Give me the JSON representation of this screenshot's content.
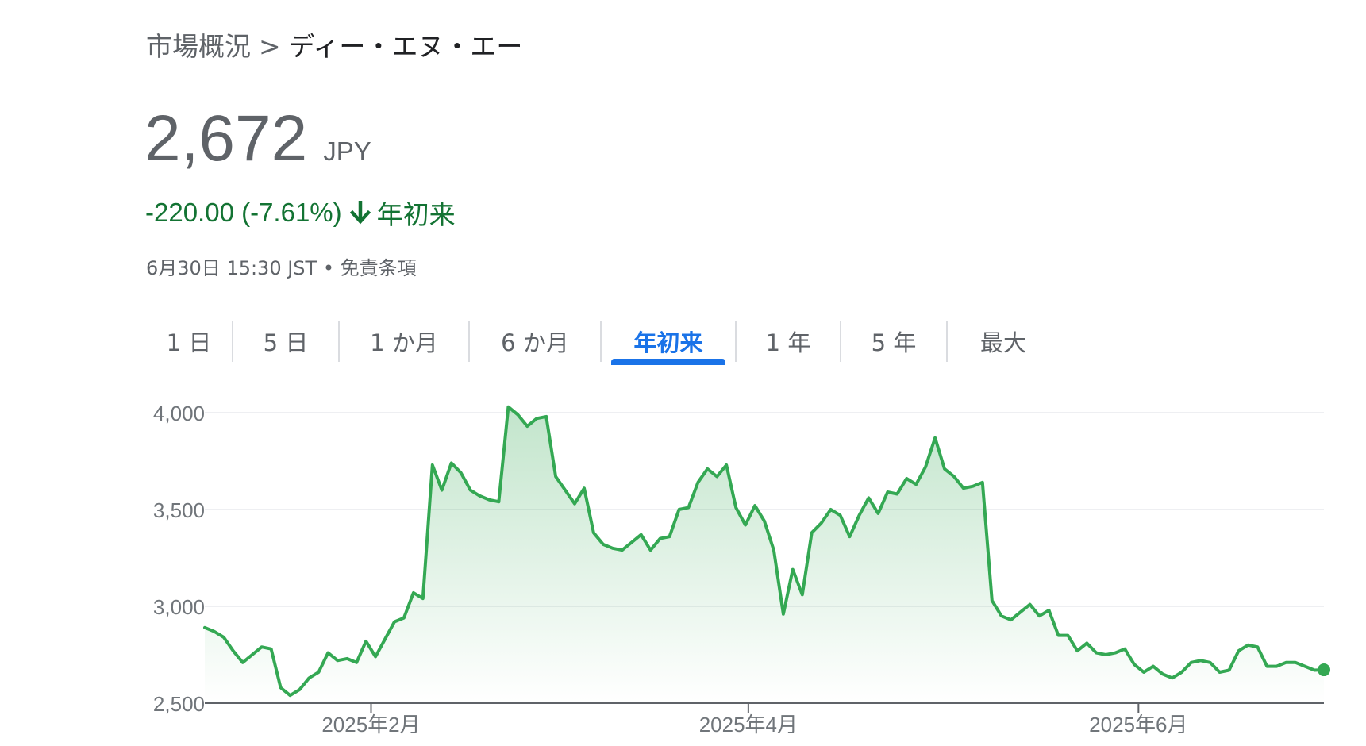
{
  "breadcrumb": {
    "root": "市場概況",
    "separator": ">",
    "current": "ディー・エヌ・エー"
  },
  "quote": {
    "price": "2,672",
    "currency": "JPY",
    "change": "-220.00 (-7.61%)",
    "period": "年初来",
    "timestamp": "6月30日 15:30 JST",
    "bullet": "•",
    "disclaimer": "免責条項"
  },
  "icons": {
    "change_direction": "arrow-down-icon"
  },
  "colors": {
    "line": "#34a853",
    "negative_text": "#137333",
    "active_tab": "#1a73e8",
    "fill": "#34a853"
  },
  "tabs": [
    {
      "label": "1 日",
      "active": false
    },
    {
      "label": "5 日",
      "active": false
    },
    {
      "label": "1 か月",
      "active": false
    },
    {
      "label": "6 か月",
      "active": false
    },
    {
      "label": "年初来",
      "active": true
    },
    {
      "label": "1 年",
      "active": false
    },
    {
      "label": "5 年",
      "active": false
    },
    {
      "label": "最大",
      "active": false
    }
  ],
  "chart_data": {
    "type": "area",
    "title": "",
    "xlabel": "",
    "ylabel": "",
    "ylim": [
      2500,
      4000
    ],
    "yticks": [
      2500,
      3000,
      3500,
      4000
    ],
    "ytick_labels": [
      "2,500",
      "3,000",
      "3,500",
      "4,000"
    ],
    "xticks": [
      {
        "date": "2025-02-01",
        "label": "2025年2月"
      },
      {
        "date": "2025-04-01",
        "label": "2025年4月"
      },
      {
        "date": "2025-06-01",
        "label": "2025年6月"
      }
    ],
    "grid": true,
    "x_start": "2025-01-06",
    "x_end": "2025-06-30",
    "series": [
      {
        "values": [
          2890,
          2870,
          2840,
          2770,
          2710,
          2750,
          2790,
          2780,
          2580,
          2540,
          2570,
          2630,
          2660,
          2760,
          2720,
          2730,
          2710,
          2820,
          2740,
          2830,
          2920,
          2940,
          3070,
          3040,
          3730,
          3600,
          3740,
          3690,
          3600,
          3570,
          3550,
          3540,
          4030,
          3990,
          3930,
          3970,
          3980,
          3670,
          3600,
          3530,
          3610,
          3380,
          3320,
          3300,
          3290,
          3330,
          3370,
          3290,
          3350,
          3360,
          3500,
          3510,
          3640,
          3710,
          3670,
          3730,
          3510,
          3420,
          3520,
          3440,
          3290,
          2960,
          3190,
          3060,
          3380,
          3430,
          3500,
          3470,
          3360,
          3470,
          3560,
          3480,
          3590,
          3580,
          3660,
          3630,
          3720,
          3870,
          3710,
          3670,
          3610,
          3620,
          3640,
          3030,
          2950,
          2930,
          2970,
          3010,
          2950,
          2980,
          2850,
          2850,
          2770,
          2810,
          2760,
          2750,
          2760,
          2780,
          2700,
          2660,
          2690,
          2650,
          2630,
          2660,
          2710,
          2720,
          2710,
          2660,
          2670,
          2770,
          2800,
          2790,
          2690,
          2690,
          2710,
          2710,
          2690,
          2670,
          2672
        ]
      }
    ]
  }
}
